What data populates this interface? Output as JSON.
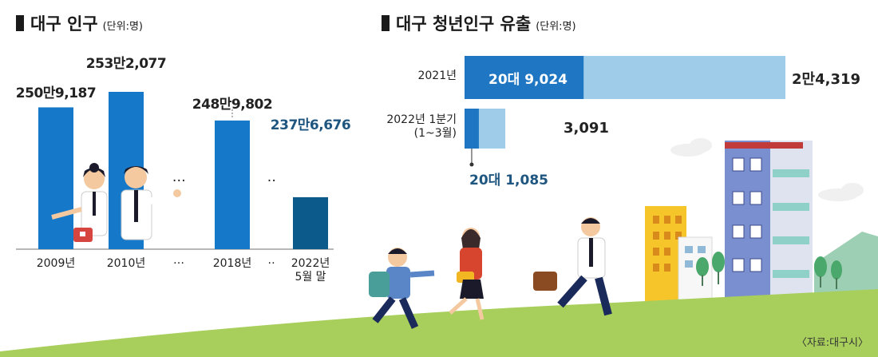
{
  "left_panel": {
    "title": "대구 인구",
    "unit": "(단위:명)"
  },
  "right_panel": {
    "title": "대구 청년인구 유출",
    "unit": "(단위:명)"
  },
  "source": "〈자료:대구시〉",
  "chart_data": [
    {
      "type": "bar",
      "title": "대구 인구",
      "unit": "(단위:명)",
      "categories": [
        "2009년",
        "2010년",
        "…",
        "2018년",
        "‥",
        "2022년 5월 말"
      ],
      "values": [
        2509187,
        2532077,
        null,
        2489802,
        null,
        2376676
      ],
      "value_labels": [
        "250만9,187",
        "253만2,077",
        "…",
        "248만9,802",
        "‥",
        "237만6,676"
      ],
      "colors": {
        "bar": "#1678c8",
        "highlight": "#0c5a8c",
        "highlight_label": "#1f5680"
      },
      "ylim": [
        2300000,
        2560000
      ]
    },
    {
      "type": "bar",
      "orientation": "horizontal",
      "stacked": true,
      "title": "대구 청년인구 유출",
      "unit": "(단위:명)",
      "categories": [
        "2021년",
        "2022년 1분기 (1~3월)"
      ],
      "series": [
        {
          "name": "20대",
          "values": [
            9024,
            1085
          ],
          "color": "#1f77c4"
        },
        {
          "values": [
            15295,
            2006
          ],
          "color": "#9fcce8"
        }
      ],
      "totals": [
        24319,
        3091
      ],
      "total_labels": [
        "2만4,319",
        "3,091"
      ],
      "segment_labels": [
        "20대 9,024",
        "20대 1,085"
      ]
    }
  ]
}
